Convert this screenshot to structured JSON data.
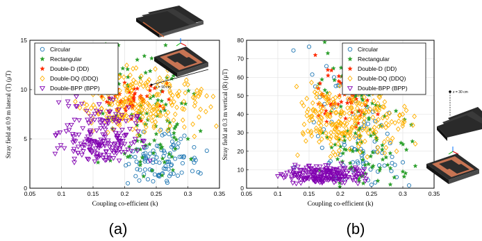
{
  "chart_data": [
    {
      "type": "scatter",
      "panel_label": "(a)",
      "xlabel": "Coupling co-efficient (k)",
      "ylabel": "Stray field at 0.9 m lateral (T) (μT)",
      "xlim": [
        0.05,
        0.35
      ],
      "ylim": [
        0,
        15
      ],
      "xticks": [
        "0.05",
        "0.1",
        "0.15",
        "0.2",
        "0.25",
        "0.3",
        "0.35"
      ],
      "yticks": [
        "0",
        "5",
        "10",
        "15"
      ],
      "grid": true,
      "legend_position": "top-left",
      "inset_annotation": "x = 90 cm",
      "series": [
        {
          "name": "Circular",
          "marker": "circle-open",
          "color": "#1f77b4",
          "x_range": [
            0.19,
            0.33
          ],
          "y_range": [
            0.2,
            6.5
          ],
          "x_mode": 0.26,
          "y_mode": 2.8,
          "count": 90,
          "points": [
            [
              0.205,
              0.5
            ],
            [
              0.245,
              0.7
            ],
            [
              0.255,
              1.2
            ],
            [
              0.262,
              2.0
            ],
            [
              0.27,
              2.7
            ],
            [
              0.29,
              3.2
            ],
            [
              0.31,
              2.6
            ],
            [
              0.32,
              1.5
            ],
            [
              0.33,
              3.8
            ],
            [
              0.24,
              3.5
            ]
          ]
        },
        {
          "name": "Rectangular",
          "marker": "star",
          "color": "#2ca02c",
          "x_range": [
            0.15,
            0.32
          ],
          "y_range": [
            1.0,
            14.7
          ],
          "x_mode": 0.23,
          "y_mode": 4.5,
          "count": 90,
          "points": [
            [
              0.17,
              14.6
            ],
            [
              0.19,
              14.5
            ],
            [
              0.2,
              3.5
            ],
            [
              0.22,
              4.8
            ],
            [
              0.25,
              5.5
            ],
            [
              0.28,
              4.0
            ],
            [
              0.3,
              5.0
            ],
            [
              0.32,
              5.8
            ],
            [
              0.23,
              1.2
            ],
            [
              0.26,
              3.0
            ]
          ]
        },
        {
          "name": "Double-D (DD)",
          "marker": "star",
          "color": "#ff2a00",
          "x_range": [
            0.16,
            0.28
          ],
          "y_range": [
            6.5,
            11.0
          ],
          "x_mode": 0.21,
          "y_mode": 9.5,
          "count": 45,
          "points": [
            [
              0.17,
              10.3
            ],
            [
              0.2,
              10.7
            ],
            [
              0.22,
              10.1
            ],
            [
              0.24,
              9.9
            ],
            [
              0.26,
              9.8
            ],
            [
              0.27,
              9.0
            ],
            [
              0.21,
              8.6
            ]
          ]
        },
        {
          "name": "Double-DQ (DDQ)",
          "marker": "diamond-open",
          "color": "#ffb000",
          "x_range": [
            0.12,
            0.345
          ],
          "y_range": [
            5.0,
            12.5
          ],
          "x_mode": 0.2,
          "y_mode": 8.5,
          "count": 230,
          "points": [
            [
              0.13,
              10.5
            ],
            [
              0.15,
              9.5
            ],
            [
              0.18,
              8.5
            ],
            [
              0.2,
              7.5
            ],
            [
              0.22,
              6.8
            ],
            [
              0.25,
              8.0
            ],
            [
              0.28,
              7.5
            ],
            [
              0.3,
              10.5
            ],
            [
              0.32,
              8.0
            ],
            [
              0.34,
              9.3
            ],
            [
              0.345,
              6.3
            ]
          ]
        },
        {
          "name": "Double-BPP (BPP)",
          "marker": "triangle-down-open",
          "color": "#8000b0",
          "x_range": [
            0.085,
            0.24
          ],
          "y_range": [
            2.5,
            9.5
          ],
          "x_mode": 0.16,
          "y_mode": 4.3,
          "count": 190,
          "points": [
            [
              0.09,
              3.5
            ],
            [
              0.11,
              8.8
            ],
            [
              0.12,
              4.0
            ],
            [
              0.14,
              5.0
            ],
            [
              0.16,
              4.3
            ],
            [
              0.18,
              3.8
            ],
            [
              0.2,
              4.5
            ],
            [
              0.22,
              3.8
            ],
            [
              0.24,
              2.8
            ]
          ]
        }
      ]
    },
    {
      "type": "scatter",
      "panel_label": "(b)",
      "xlabel": "Coupling co-efficient (k)",
      "ylabel": "Stray field at 0.3 m vertical (R) (μT)",
      "xlim": [
        0.05,
        0.35
      ],
      "ylim": [
        0,
        80
      ],
      "xticks": [
        "0.05",
        "0.1",
        "0.15",
        "0.2",
        "0.25",
        "0.3",
        "0.35"
      ],
      "yticks": [
        "0",
        "10",
        "20",
        "30",
        "40",
        "50",
        "60",
        "70",
        "80"
      ],
      "grid": true,
      "legend_position": "top-right",
      "inset_annotation": "z = 30 cm",
      "series": [
        {
          "name": "Circular",
          "marker": "circle-open",
          "color": "#1f77b4",
          "x_range": [
            0.12,
            0.31
          ],
          "y_range": [
            0.5,
            77
          ],
          "x_mode": 0.24,
          "y_mode": 12,
          "count": 80,
          "points": [
            [
              0.125,
              74.5
            ],
            [
              0.15,
              76.5
            ],
            [
              0.16,
              55
            ],
            [
              0.19,
              60
            ],
            [
              0.2,
              18
            ],
            [
              0.22,
              14
            ],
            [
              0.26,
              9
            ],
            [
              0.29,
              6
            ],
            [
              0.31,
              1.5
            ],
            [
              0.3,
              14
            ]
          ]
        },
        {
          "name": "Rectangular",
          "marker": "star",
          "color": "#2ca02c",
          "x_range": [
            0.16,
            0.32
          ],
          "y_range": [
            0.5,
            80
          ],
          "x_mode": 0.22,
          "y_mode": 8,
          "count": 110,
          "points": [
            [
              0.175,
              79
            ],
            [
              0.18,
              73
            ],
            [
              0.2,
              40
            ],
            [
              0.22,
              20
            ],
            [
              0.24,
              8
            ],
            [
              0.26,
              4
            ],
            [
              0.28,
              2
            ],
            [
              0.3,
              9
            ],
            [
              0.32,
              12
            ]
          ]
        },
        {
          "name": "Double-D (DD)",
          "marker": "star",
          "color": "#ff2a00",
          "x_range": [
            0.15,
            0.27
          ],
          "y_range": [
            30,
            73
          ],
          "x_mode": 0.2,
          "y_mode": 45,
          "count": 45,
          "points": [
            [
              0.16,
              72
            ],
            [
              0.18,
              64
            ],
            [
              0.2,
              57
            ],
            [
              0.22,
              50
            ],
            [
              0.24,
              45
            ],
            [
              0.26,
              40
            ]
          ]
        },
        {
          "name": "Double-DQ (DDQ)",
          "marker": "diamond-open",
          "color": "#ffb000",
          "x_range": [
            0.125,
            0.32
          ],
          "y_range": [
            15,
            60
          ],
          "x_mode": 0.18,
          "y_mode": 38,
          "count": 250,
          "points": [
            [
              0.13,
              55
            ],
            [
              0.14,
              30
            ],
            [
              0.16,
              42
            ],
            [
              0.2,
              35
            ],
            [
              0.23,
              28
            ],
            [
              0.26,
              22
            ],
            [
              0.29,
              20
            ],
            [
              0.3,
              35
            ],
            [
              0.32,
              24
            ]
          ]
        },
        {
          "name": "Double-BPP (BPP)",
          "marker": "triangle-down-open",
          "color": "#8000b0",
          "x_range": [
            0.095,
            0.25
          ],
          "y_range": [
            2,
            14
          ],
          "x_mode": 0.17,
          "y_mode": 6,
          "count": 190,
          "points": [
            [
              0.1,
              6.5
            ],
            [
              0.12,
              9
            ],
            [
              0.14,
              7
            ],
            [
              0.16,
              6
            ],
            [
              0.18,
              5.5
            ],
            [
              0.2,
              5
            ],
            [
              0.22,
              4.5
            ],
            [
              0.24,
              4
            ]
          ]
        }
      ]
    }
  ]
}
